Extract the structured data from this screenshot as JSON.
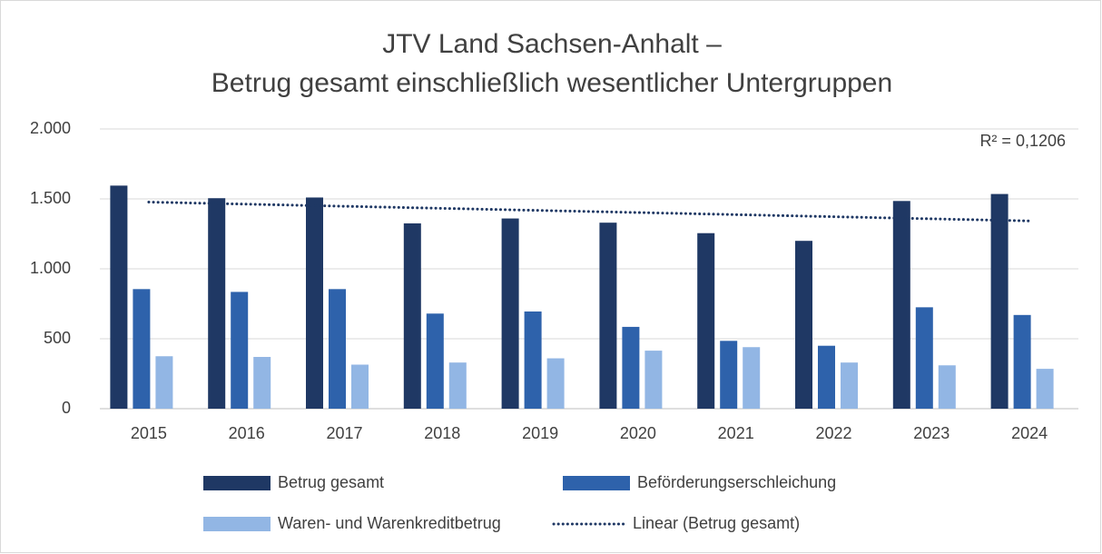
{
  "chart_data": {
    "type": "bar",
    "title_lines": [
      "JTV Land Sachsen-Anhalt –",
      "Betrug gesamt einschließlich wesentlicher Untergruppen"
    ],
    "categories": [
      "2015",
      "2016",
      "2017",
      "2018",
      "2019",
      "2020",
      "2021",
      "2022",
      "2023",
      "2024"
    ],
    "series": [
      {
        "name": "Betrug gesamt",
        "color": "#1f3864",
        "values": [
          1595,
          1505,
          1510,
          1325,
          1360,
          1330,
          1255,
          1200,
          1485,
          1535
        ]
      },
      {
        "name": "Beförderungserschleichung",
        "color": "#2e62ab",
        "values": [
          855,
          835,
          855,
          680,
          695,
          585,
          485,
          450,
          725,
          670
        ]
      },
      {
        "name": "Waren- und Warenkreditbetrug",
        "color": "#92b6e4",
        "values": [
          375,
          370,
          315,
          330,
          360,
          415,
          440,
          330,
          310,
          285
        ]
      }
    ],
    "trendline": {
      "name": "Linear (Betrug gesamt)",
      "series": 0,
      "color": "#1f3864",
      "r2_label": "R² = 0,1206"
    },
    "ylim": [
      0,
      2000
    ],
    "yticks": [
      0,
      500,
      {
        "value": 1000,
        "label": "1.000"
      },
      {
        "value": 1500,
        "label": "1.500"
      },
      {
        "value": 2000,
        "label": "2.000"
      }
    ],
    "grid": true
  }
}
